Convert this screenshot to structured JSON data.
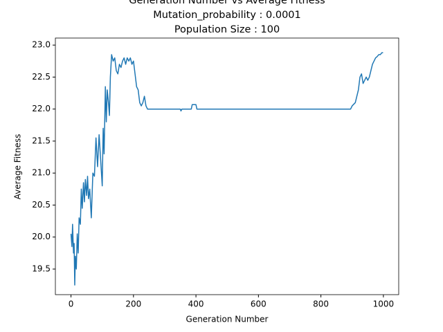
{
  "chart_data": {
    "type": "line",
    "title_lines": [
      "Generation Number vs Average Fitness",
      "Mutation_probability : 0.0001",
      "Population Size : 100"
    ],
    "x_label": "Generation Number",
    "y_label": "Average Fitness",
    "x": [
      0,
      3,
      5,
      8,
      10,
      12,
      14,
      17,
      20,
      23,
      26,
      30,
      33,
      36,
      40,
      43,
      46,
      50,
      53,
      56,
      60,
      65,
      70,
      75,
      80,
      85,
      90,
      95,
      100,
      103,
      106,
      110,
      113,
      116,
      120,
      123,
      126,
      130,
      135,
      140,
      145,
      150,
      155,
      160,
      165,
      170,
      175,
      180,
      185,
      190,
      195,
      200,
      205,
      210,
      215,
      220,
      225,
      230,
      235,
      240,
      245,
      250,
      350,
      352,
      355,
      385,
      388,
      400,
      403,
      895,
      900,
      910,
      915,
      920,
      925,
      930,
      935,
      940,
      945,
      950,
      955,
      960,
      965,
      970,
      975,
      980,
      985,
      990,
      995,
      999
    ],
    "series": [
      {
        "name": "Average Fitness",
        "color": "#1f77b4",
        "values": [
          20.05,
          19.85,
          20.2,
          19.75,
          19.9,
          19.25,
          19.7,
          19.5,
          20.05,
          19.75,
          20.3,
          20.2,
          20.75,
          20.45,
          20.85,
          20.55,
          20.9,
          20.65,
          20.95,
          20.6,
          20.75,
          20.3,
          21.0,
          20.95,
          21.55,
          21.1,
          21.6,
          21.2,
          20.8,
          21.7,
          21.3,
          22.35,
          21.8,
          22.3,
          22.1,
          21.9,
          22.5,
          22.85,
          22.75,
          22.8,
          22.6,
          22.55,
          22.7,
          22.65,
          22.75,
          22.8,
          22.7,
          22.8,
          22.75,
          22.8,
          22.7,
          22.75,
          22.55,
          22.35,
          22.3,
          22.1,
          22.05,
          22.1,
          22.2,
          22.05,
          22.0,
          22.0,
          22.0,
          21.97,
          22.0,
          22.0,
          22.07,
          22.07,
          22.0,
          22.0,
          22.05,
          22.1,
          22.2,
          22.3,
          22.5,
          22.55,
          22.4,
          22.45,
          22.5,
          22.45,
          22.5,
          22.6,
          22.7,
          22.75,
          22.8,
          22.82,
          22.85,
          22.85,
          22.88,
          22.88
        ]
      }
    ],
    "xlim": [
      -50,
      1049
    ],
    "ylim": [
      19.1,
      23.11
    ],
    "xticks": [
      0,
      200,
      400,
      600,
      800,
      1000
    ],
    "yticks": [
      {
        "value": 19.5,
        "label": "19.5"
      },
      {
        "value": 20.0,
        "label": "20.0"
      },
      20.5,
      {
        "value": 21.0,
        "label": "21.0"
      },
      21.5,
      {
        "value": 22.0,
        "label": "22.0"
      },
      22.5,
      {
        "value": 23.0,
        "label": "23.0"
      }
    ],
    "grid": false
  }
}
